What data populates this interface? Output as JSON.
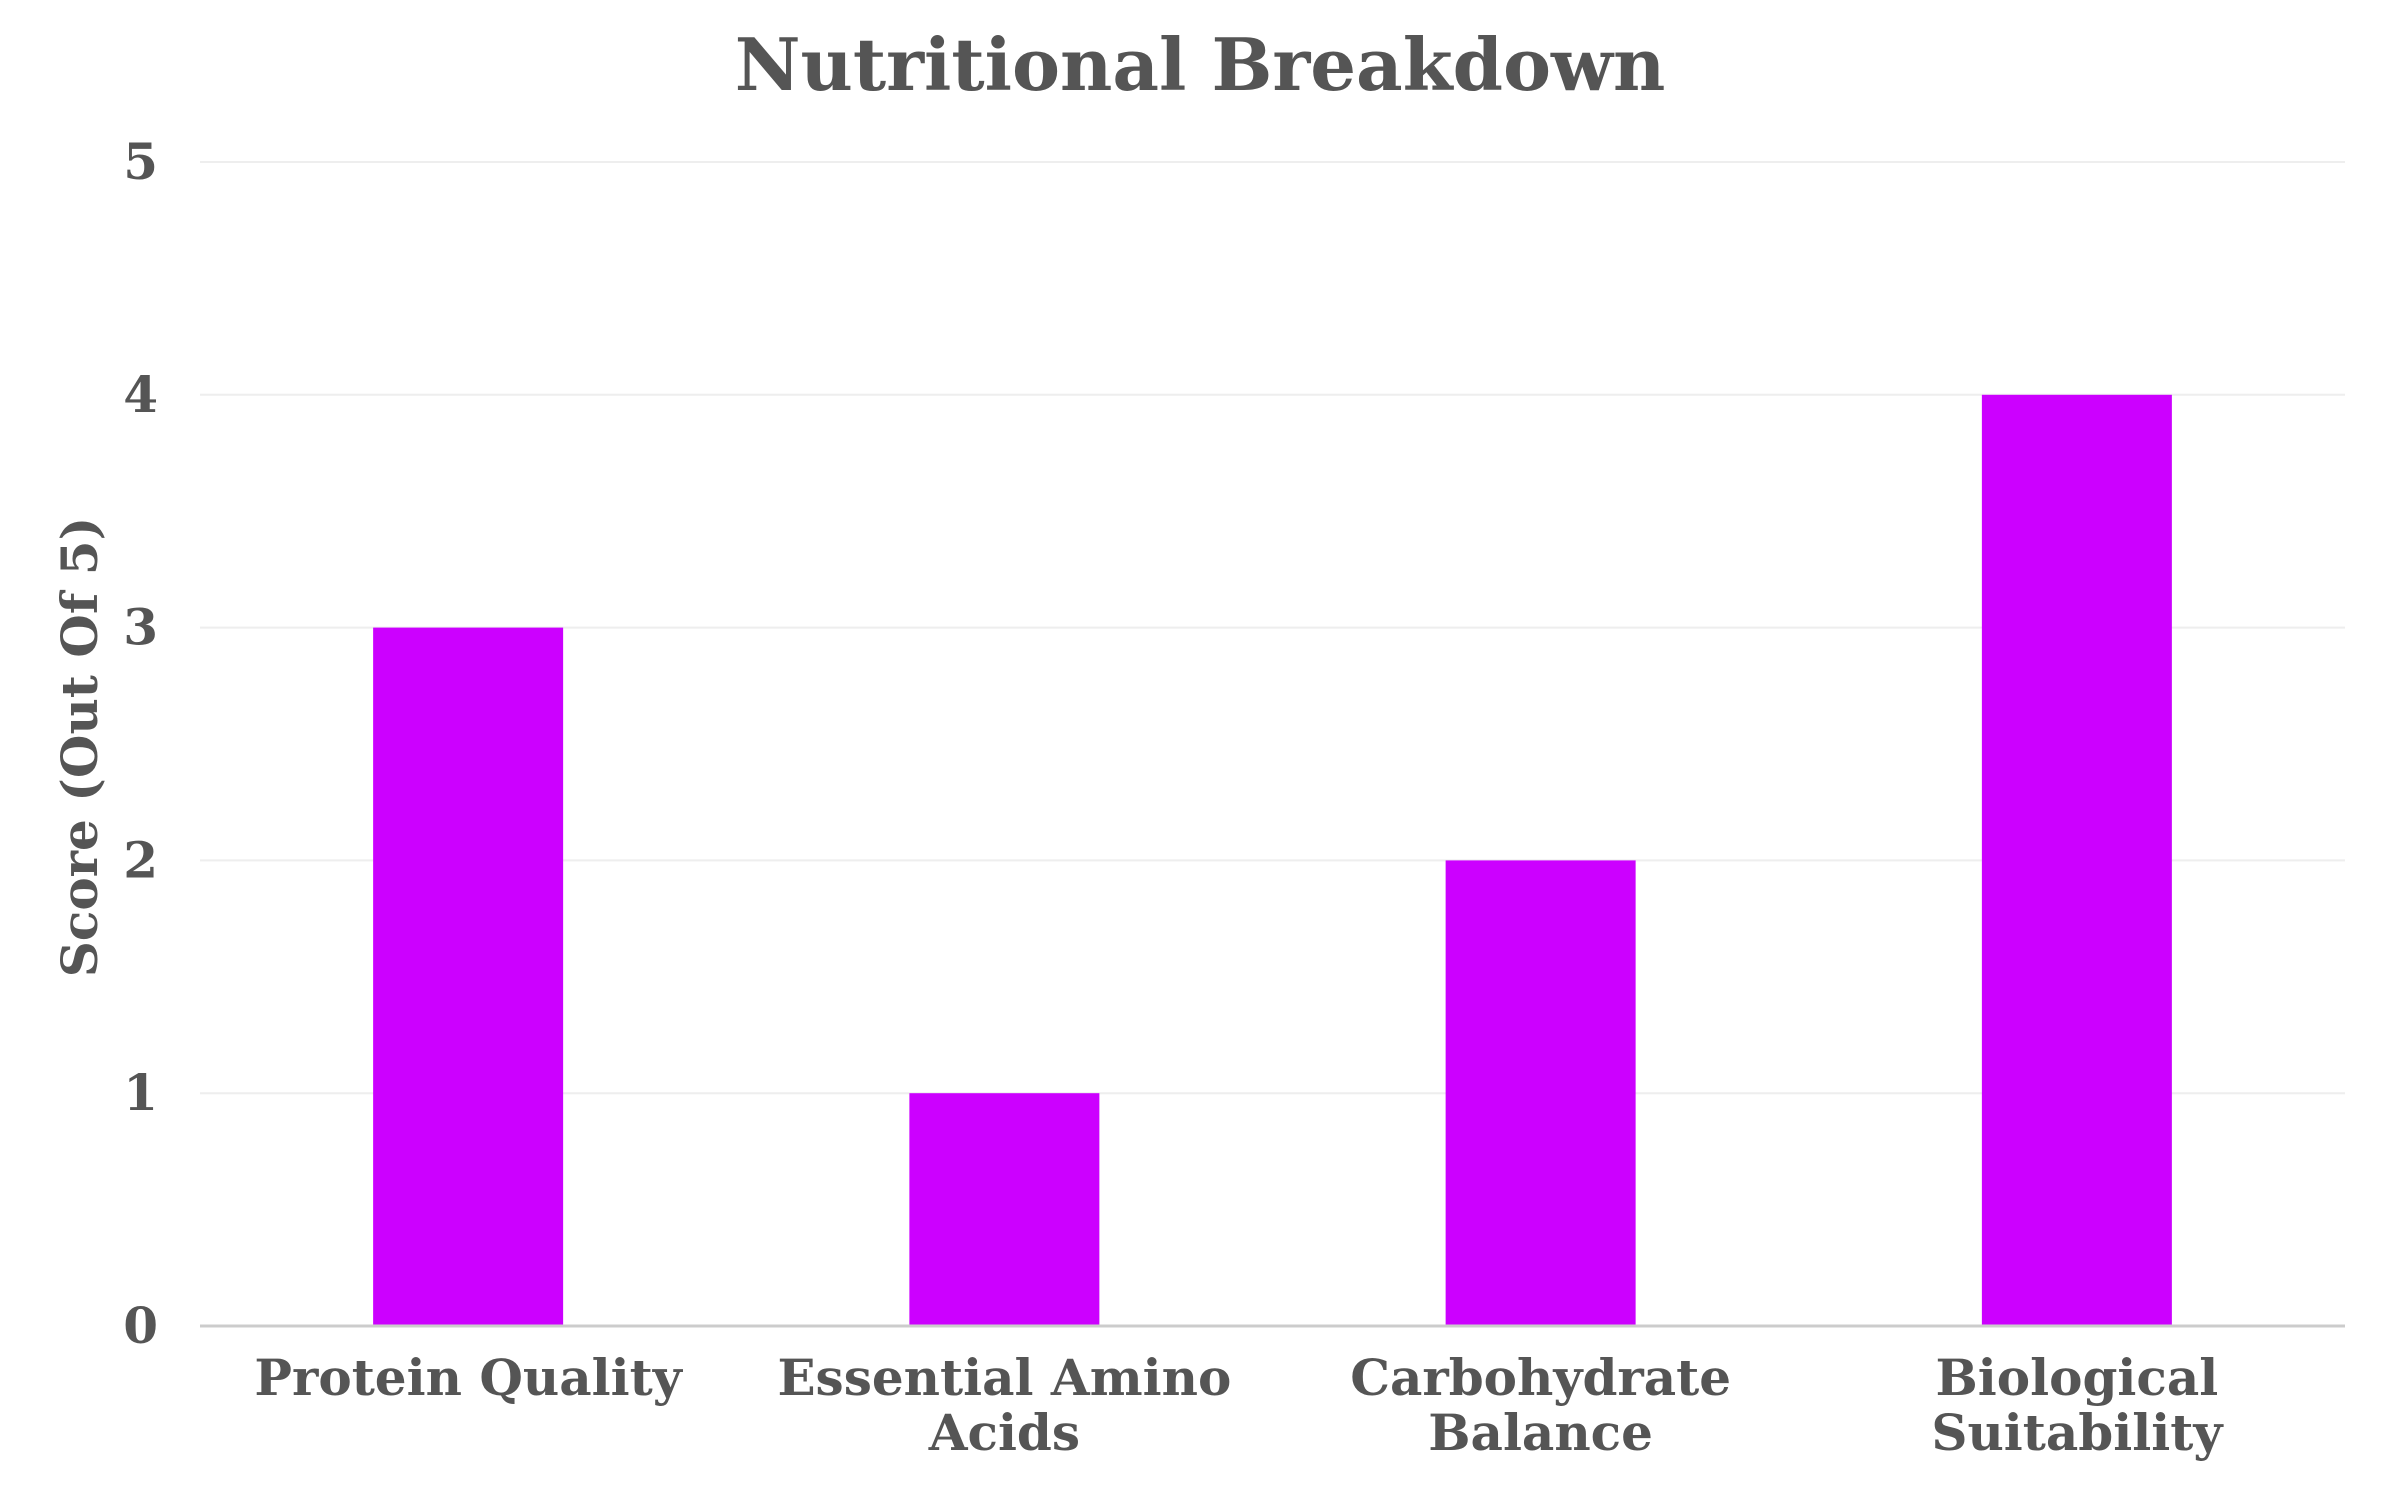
{
  "chart_data": {
    "type": "bar",
    "title": "Nutritional Breakdown",
    "xlabel": "",
    "ylabel": "Score (Out Of 5)",
    "categories": [
      [
        "Protein Quality"
      ],
      [
        "Essential Amino",
        "Acids"
      ],
      [
        "Carbohydrate",
        "Balance"
      ],
      [
        "Biological",
        "Suitability"
      ]
    ],
    "values": [
      3,
      1,
      2,
      4
    ],
    "ylim": [
      0,
      5
    ],
    "yticks": [
      0,
      1,
      2,
      3,
      4,
      5
    ],
    "grid": true,
    "legend": "none",
    "colors": {
      "bar": "#cc00ff"
    }
  }
}
